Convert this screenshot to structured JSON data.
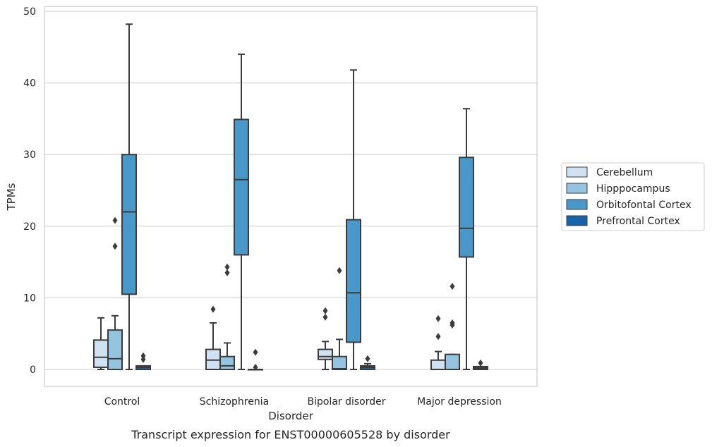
{
  "chart_data": {
    "type": "box",
    "title": "",
    "caption": "Transcript expression for ENST00000605528 by disorder",
    "xlabel": "Disorder",
    "ylabel": "TPMs",
    "ylim": [
      -2.3,
      50.6
    ],
    "yticks": [
      0,
      10,
      20,
      30,
      40,
      50
    ],
    "grid": "horizontal",
    "legend_position": "right",
    "categories": [
      "Control",
      "Schizophrenia",
      "Bipolar disorder",
      "Major depression"
    ],
    "series": [
      {
        "name": "Cerebellum",
        "color": "#d0e1f2",
        "boxes": [
          {
            "whisker_low": 0.0,
            "q1": 0.3,
            "median": 1.7,
            "q3": 4.1,
            "whisker_high": 7.2,
            "outliers": []
          },
          {
            "whisker_low": 0.0,
            "q1": 0.0,
            "median": 1.3,
            "q3": 2.8,
            "whisker_high": 6.5,
            "outliers": [
              8.4
            ]
          },
          {
            "whisker_low": 0.0,
            "q1": 1.4,
            "median": 1.8,
            "q3": 2.8,
            "whisker_high": 3.9,
            "outliers": [
              7.3,
              8.2
            ]
          },
          {
            "whisker_low": 0.0,
            "q1": 0.0,
            "median": 0.0,
            "q3": 1.3,
            "whisker_high": 2.5,
            "outliers": [
              4.6,
              7.1
            ]
          }
        ]
      },
      {
        "name": "Hipppocampus",
        "color": "#94c4df",
        "boxes": [
          {
            "whisker_low": 0.0,
            "q1": 0.0,
            "median": 1.5,
            "q3": 5.5,
            "whisker_high": 7.5,
            "outliers": [
              17.2,
              20.8
            ]
          },
          {
            "whisker_low": 0.0,
            "q1": 0.0,
            "median": 0.5,
            "q3": 1.8,
            "whisker_high": 3.7,
            "outliers": [
              13.5,
              14.3
            ]
          },
          {
            "whisker_low": 0.0,
            "q1": 0.0,
            "median": 0.1,
            "q3": 1.8,
            "whisker_high": 4.2,
            "outliers": [
              13.8
            ]
          },
          {
            "whisker_low": 0.0,
            "q1": 0.0,
            "median": 0.0,
            "q3": 2.1,
            "whisker_high": 2.1,
            "outliers": [
              6.2,
              6.5,
              11.6
            ]
          }
        ]
      },
      {
        "name": "Orbitofontal Cortex",
        "color": "#4a98c9",
        "boxes": [
          {
            "whisker_low": 0.0,
            "q1": 10.5,
            "median": 22.0,
            "q3": 30.0,
            "whisker_high": 48.2,
            "outliers": []
          },
          {
            "whisker_low": 0.0,
            "q1": 16.0,
            "median": 26.5,
            "q3": 34.9,
            "whisker_high": 44.0,
            "outliers": []
          },
          {
            "whisker_low": 0.0,
            "q1": 3.8,
            "median": 10.7,
            "q3": 20.9,
            "whisker_high": 41.8,
            "outliers": []
          },
          {
            "whisker_low": 0.0,
            "q1": 15.7,
            "median": 19.7,
            "q3": 29.6,
            "whisker_high": 36.4,
            "outliers": []
          }
        ]
      },
      {
        "name": "Prefrontal Cortex",
        "color": "#1764ab",
        "boxes": [
          {
            "whisker_low": 0.0,
            "q1": 0.0,
            "median": 0.3,
            "q3": 0.5,
            "whisker_high": 0.5,
            "outliers": [
              1.4,
              1.9
            ]
          },
          {
            "whisker_low": 0.0,
            "q1": 0.0,
            "median": 0.0,
            "q3": 0.0,
            "whisker_high": 0.0,
            "outliers": [
              0.3,
              2.4
            ]
          },
          {
            "whisker_low": 0.0,
            "q1": 0.0,
            "median": 0.3,
            "q3": 0.5,
            "whisker_high": 0.8,
            "outliers": [
              1.5
            ]
          },
          {
            "whisker_low": 0.0,
            "q1": 0.0,
            "median": 0.2,
            "q3": 0.4,
            "whisker_high": 0.4,
            "outliers": [
              0.9
            ]
          }
        ]
      }
    ]
  }
}
